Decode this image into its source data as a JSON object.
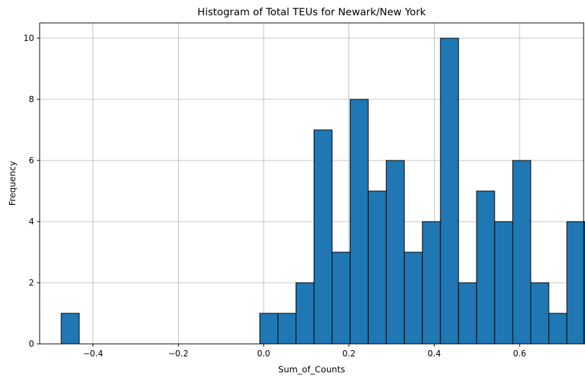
{
  "chart_data": {
    "type": "bar",
    "title": "Histogram of Total TEUs for Newark/New York",
    "xlabel": "Sum_of_Counts",
    "ylabel": "Frequency",
    "xlim": [
      -0.525,
      0.75
    ],
    "ylim": [
      0,
      10.5
    ],
    "xticks": [
      -0.4,
      -0.2,
      0.0,
      0.2,
      0.4,
      0.6
    ],
    "xtick_labels": [
      "−0.4",
      "−0.2",
      "0.0",
      "0.2",
      "0.4",
      "0.6"
    ],
    "yticks": [
      0,
      2,
      4,
      6,
      8,
      10
    ],
    "ytick_labels": [
      "0",
      "2",
      "4",
      "6",
      "8",
      "10"
    ],
    "grid": true,
    "bar_color": "#1f77b4",
    "edge_color": "#000000",
    "bins": {
      "start": -0.4745,
      "width": 0.04233,
      "counts": [
        1,
        0,
        0,
        0,
        0,
        0,
        0,
        0,
        0,
        0,
        0,
        1,
        1,
        2,
        7,
        3,
        8,
        5,
        6,
        3,
        4,
        10,
        2,
        5,
        4,
        6,
        2,
        1,
        4
      ]
    }
  }
}
